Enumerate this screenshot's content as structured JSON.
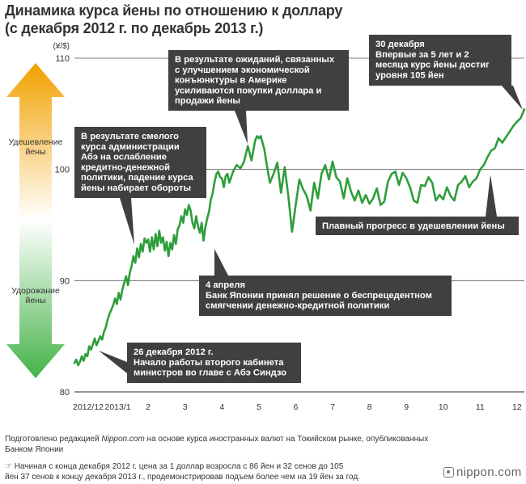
{
  "header": {
    "title_line1": "Динамика курса йены по отношению к доллару",
    "title_line2": "(с декабря 2012 г. по декабрь 2013 г.)"
  },
  "colors": {
    "line": "#2e9e3a",
    "callout_bg": "#404040",
    "callout_text": "#ffffff",
    "gradient_top": "#f2a100",
    "gradient_bottom": "#44b347",
    "grid": "#555555"
  },
  "sidebar": {
    "top_label": "Удешевление йены",
    "bottom_label": "Удорожание йены"
  },
  "chart_data": {
    "type": "line",
    "ylabel": "(¥/$)",
    "ylim": [
      80,
      110
    ],
    "yticks": [
      80,
      90,
      100,
      110
    ],
    "xlim": [
      0,
      12.2
    ],
    "x_tick_labels": [
      {
        "x": 0.0,
        "label": "2012/12"
      },
      {
        "x": 1.0,
        "label": "2013/1"
      },
      {
        "x": 2.0,
        "label": "2"
      },
      {
        "x": 3.0,
        "label": "3"
      },
      {
        "x": 4.0,
        "label": "4"
      },
      {
        "x": 5.0,
        "label": "5"
      },
      {
        "x": 6.0,
        "label": "6"
      },
      {
        "x": 7.0,
        "label": "7"
      },
      {
        "x": 8.0,
        "label": "8"
      },
      {
        "x": 9.0,
        "label": "9"
      },
      {
        "x": 10.0,
        "label": "10"
      },
      {
        "x": 11.0,
        "label": "11"
      },
      {
        "x": 12.0,
        "label": "12"
      }
    ],
    "grid": "horizontal",
    "series": [
      {
        "name": "",
        "x": [
          0.0,
          0.05,
          0.1,
          0.15,
          0.2,
          0.25,
          0.3,
          0.35,
          0.4,
          0.45,
          0.5,
          0.55,
          0.6,
          0.65,
          0.7,
          0.75,
          0.8,
          0.85,
          0.9,
          0.95,
          1.0,
          1.05,
          1.1,
          1.15,
          1.2,
          1.25,
          1.3,
          1.35,
          1.4,
          1.45,
          1.5,
          1.55,
          1.6,
          1.65,
          1.7,
          1.75,
          1.8,
          1.85,
          1.9,
          1.95,
          2.0,
          2.05,
          2.1,
          2.15,
          2.2,
          2.25,
          2.3,
          2.35,
          2.4,
          2.45,
          2.5,
          2.55,
          2.6,
          2.65,
          2.7,
          2.75,
          2.8,
          2.85,
          2.9,
          2.95,
          3.0,
          3.05,
          3.1,
          3.15,
          3.2,
          3.25,
          3.3,
          3.35,
          3.4,
          3.45,
          3.5,
          3.55,
          3.6,
          3.65,
          3.7,
          3.75,
          3.8,
          3.85,
          3.9,
          3.95,
          4.0,
          4.05,
          4.1,
          4.15,
          4.2,
          4.3,
          4.4,
          4.5,
          4.6,
          4.7,
          4.8,
          4.9,
          4.95,
          5.0,
          5.05,
          5.1,
          5.15,
          5.2,
          5.3,
          5.4,
          5.5,
          5.6,
          5.7,
          5.8,
          5.9,
          6.0,
          6.1,
          6.2,
          6.3,
          6.4,
          6.5,
          6.6,
          6.7,
          6.8,
          6.9,
          7.0,
          7.1,
          7.2,
          7.3,
          7.4,
          7.5,
          7.6,
          7.7,
          7.8,
          7.9,
          8.0,
          8.1,
          8.2,
          8.3,
          8.4,
          8.5,
          8.6,
          8.7,
          8.8,
          8.9,
          9.0,
          9.1,
          9.2,
          9.3,
          9.4,
          9.5,
          9.6,
          9.7,
          9.8,
          9.9,
          10.0,
          10.1,
          10.2,
          10.3,
          10.4,
          10.5,
          10.6,
          10.7,
          10.8,
          10.9,
          11.0,
          11.1,
          11.2,
          11.3,
          11.4,
          11.5,
          11.6,
          11.7,
          11.8,
          11.9,
          12.0,
          12.1,
          12.2
        ],
        "y": [
          82.6,
          82.9,
          82.4,
          82.7,
          83.2,
          82.8,
          83.4,
          83.2,
          84.1,
          83.8,
          84.3,
          84.8,
          84.2,
          84.6,
          85.0,
          84.7,
          85.4,
          85.8,
          86.5,
          87.0,
          87.4,
          87.8,
          88.4,
          87.9,
          88.9,
          88.3,
          89.2,
          89.8,
          90.4,
          89.6,
          90.7,
          91.3,
          92.2,
          91.6,
          92.9,
          92.1,
          93.3,
          92.6,
          93.8,
          93.4,
          93.7,
          92.6,
          93.9,
          92.8,
          94.2,
          93.1,
          94.5,
          93.4,
          93.9,
          92.7,
          93.5,
          92.2,
          93.4,
          92.8,
          94.1,
          93.3,
          94.6,
          95.0,
          95.8,
          95.2,
          96.4,
          95.9,
          96.8,
          96.3,
          95.2,
          94.7,
          95.8,
          94.9,
          94.3,
          95.2,
          93.6,
          94.8,
          95.6,
          96.2,
          97.3,
          97.9,
          98.9,
          99.6,
          99.8,
          99.3,
          99.2,
          98.4,
          99.4,
          99.6,
          98.8,
          99.8,
          100.4,
          100.1,
          100.7,
          102.1,
          100.8,
          102.6,
          103.0,
          102.8,
          103.0,
          102.4,
          101.8,
          100.7,
          98.8,
          99.6,
          100.6,
          97.9,
          100.2,
          97.6,
          94.4,
          96.8,
          99.1,
          98.2,
          97.6,
          96.3,
          98.8,
          97.4,
          99.6,
          100.4,
          99.1,
          100.7,
          99.3,
          98.9,
          97.4,
          99.2,
          98.0,
          97.2,
          98.1,
          97.0,
          97.7,
          96.9,
          97.4,
          98.3,
          96.8,
          97.1,
          98.9,
          99.6,
          99.8,
          98.6,
          99.7,
          99.2,
          98.4,
          97.2,
          97.0,
          98.6,
          98.5,
          99.3,
          98.8,
          97.2,
          97.7,
          97.3,
          98.4,
          97.6,
          97.2,
          98.6,
          98.9,
          99.4,
          98.4,
          98.9,
          99.2,
          100.0,
          100.4,
          101.1,
          101.7,
          101.9,
          102.8,
          102.4,
          102.9,
          103.4,
          103.9,
          104.3,
          104.6,
          105.4
        ]
      }
    ],
    "annotations": [
      {
        "id": "dec26",
        "lines": [
          "26 декабря 2012 г.",
          "Начало работы второго кабинета",
          "министров во главе с Абэ Синдзо"
        ]
      },
      {
        "id": "bold",
        "lines": [
          "В результате смелого",
          "курса администрации",
          "Абэ на ослабление",
          "кредитно-денежной",
          "политики, падение курса",
          "йены набирает обороты"
        ]
      },
      {
        "id": "usa",
        "lines": [
          "В результате ожиданий, связанных",
          "с улучшением экономической",
          "конъюнктуры в Америке",
          "усиливаются покупки доллара и",
          "продажи йены"
        ]
      },
      {
        "id": "apr4",
        "lines": [
          "4 апреля",
          "Банк Японии принял решение о беспрецедентном",
          "смягчении денежно-кредитной политики"
        ]
      },
      {
        "id": "gradual",
        "lines": [
          "Плавный прогресс в удешевлении йены"
        ]
      },
      {
        "id": "dec30",
        "lines": [
          "30 декабря",
          "Впервые за 5 лет и 2",
          "месяца курс йены достиг",
          "уровня 105 йен"
        ]
      }
    ]
  },
  "footer": {
    "source_prefix": "Подготовлено редакцией ",
    "source_italic": "Nippon.com",
    "source_rest": " на основе курса иностранных валют на Токийском рынке, опубликованных",
    "source_line2": "Банком Японии",
    "note_line1": "☞ Начиная с конца декабря 2012 г. цена за 1 доллар возросла с 86 йен и 32 сенов до 105",
    "note_line2": "йен 37 сенов к концу декабря 2013 г., продемонстрировав подъем более чем на 19 йен за год.",
    "logo_text": "nippon.com"
  }
}
